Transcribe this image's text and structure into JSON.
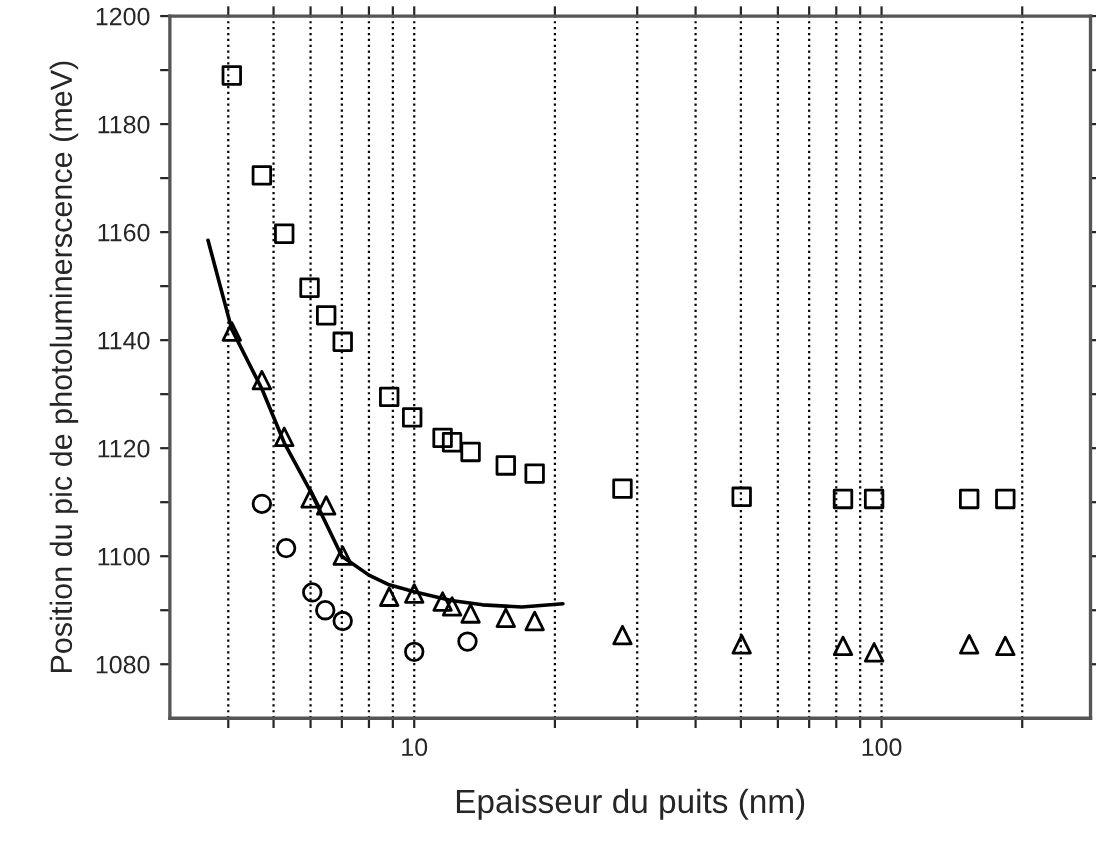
{
  "chart_data": {
    "type": "scatter",
    "xlabel": "Epaisseur du puits (nm)",
    "ylabel": "Position du pic de photoluminerscence (meV)",
    "log": "x",
    "grid": "x",
    "legend": false,
    "xlim": [
      3,
      280
    ],
    "ylim": [
      1070,
      1200
    ],
    "xticks": [
      {
        "value": 4,
        "label": null
      },
      {
        "value": 5,
        "label": null
      },
      {
        "value": 6,
        "label": null
      },
      {
        "value": 7,
        "label": null
      },
      {
        "value": 8,
        "label": null
      },
      {
        "value": 9,
        "label": null
      },
      10,
      {
        "value": 20,
        "label": null
      },
      {
        "value": 30,
        "label": null
      },
      {
        "value": 40,
        "label": null
      },
      {
        "value": 50,
        "label": null
      },
      {
        "value": 60,
        "label": null
      },
      {
        "value": 70,
        "label": null
      },
      {
        "value": 80,
        "label": null
      },
      {
        "value": 90,
        "label": null
      },
      100,
      {
        "value": 200,
        "label": null
      }
    ],
    "yticks": [
      1080,
      {
        "value": 1090,
        "label": null
      },
      1100,
      {
        "value": 1110,
        "label": null
      },
      1120,
      {
        "value": 1130,
        "label": null
      },
      1140,
      {
        "value": 1150,
        "label": null
      },
      1160,
      {
        "value": 1170,
        "label": null
      },
      1180,
      {
        "value": 1190,
        "label": null
      },
      1200
    ],
    "series": [
      {
        "marker": "square",
        "color": "#000000",
        "x": [
          4.07,
          4.72,
          5.27,
          5.97,
          6.48,
          7.03,
          8.84,
          9.9,
          11.5,
          12.05,
          13.2,
          15.7,
          18.1,
          27.9,
          50.2,
          82.7,
          96.4,
          154,
          184
        ],
        "values": [
          1189,
          1170.5,
          1159.7,
          1149.7,
          1144.6,
          1139.7,
          1129.5,
          1125.7,
          1121.9,
          1121.1,
          1119.3,
          1116.8,
          1115.3,
          1112.5,
          1111,
          1110.6,
          1110.6,
          1110.6,
          1110.6
        ]
      },
      {
        "marker": "triangle",
        "color": "#000000",
        "x": [
          4.07,
          4.72,
          5.27,
          6.0,
          6.48,
          7.03,
          8.84,
          10.0,
          11.5,
          12.05,
          13.2,
          15.7,
          18.1,
          27.9,
          50.2,
          82.7,
          96.4,
          154,
          184
        ],
        "values": [
          1141.6,
          1132.6,
          1122.1,
          1110.7,
          1109.4,
          1100.1,
          1092.5,
          1093.1,
          1091.6,
          1090.7,
          1089.4,
          1088.6,
          1088,
          1085.4,
          1083.7,
          1083.4,
          1082.2,
          1083.7,
          1083.4
        ]
      },
      {
        "marker": "circle",
        "color": "#000000",
        "x": [
          4.72,
          5.32,
          6.05,
          6.45,
          7.03,
          10.0,
          13.0
        ],
        "values": [
          1109.7,
          1101.5,
          1093.3,
          1090,
          1088,
          1082.3,
          1084.2
        ]
      },
      {
        "type": "line",
        "marker": "none",
        "color": "#000000",
        "x": [
          3.62,
          4.07,
          4.72,
          5.27,
          6.0,
          7.0,
          8.0,
          8.84,
          10,
          12,
          14,
          17,
          20.8
        ],
        "values": [
          1158.5,
          1142,
          1131,
          1121,
          1112,
          1100,
          1096.5,
          1094.7,
          1093.4,
          1091.8,
          1091,
          1090.6,
          1091.2
        ]
      }
    ]
  }
}
